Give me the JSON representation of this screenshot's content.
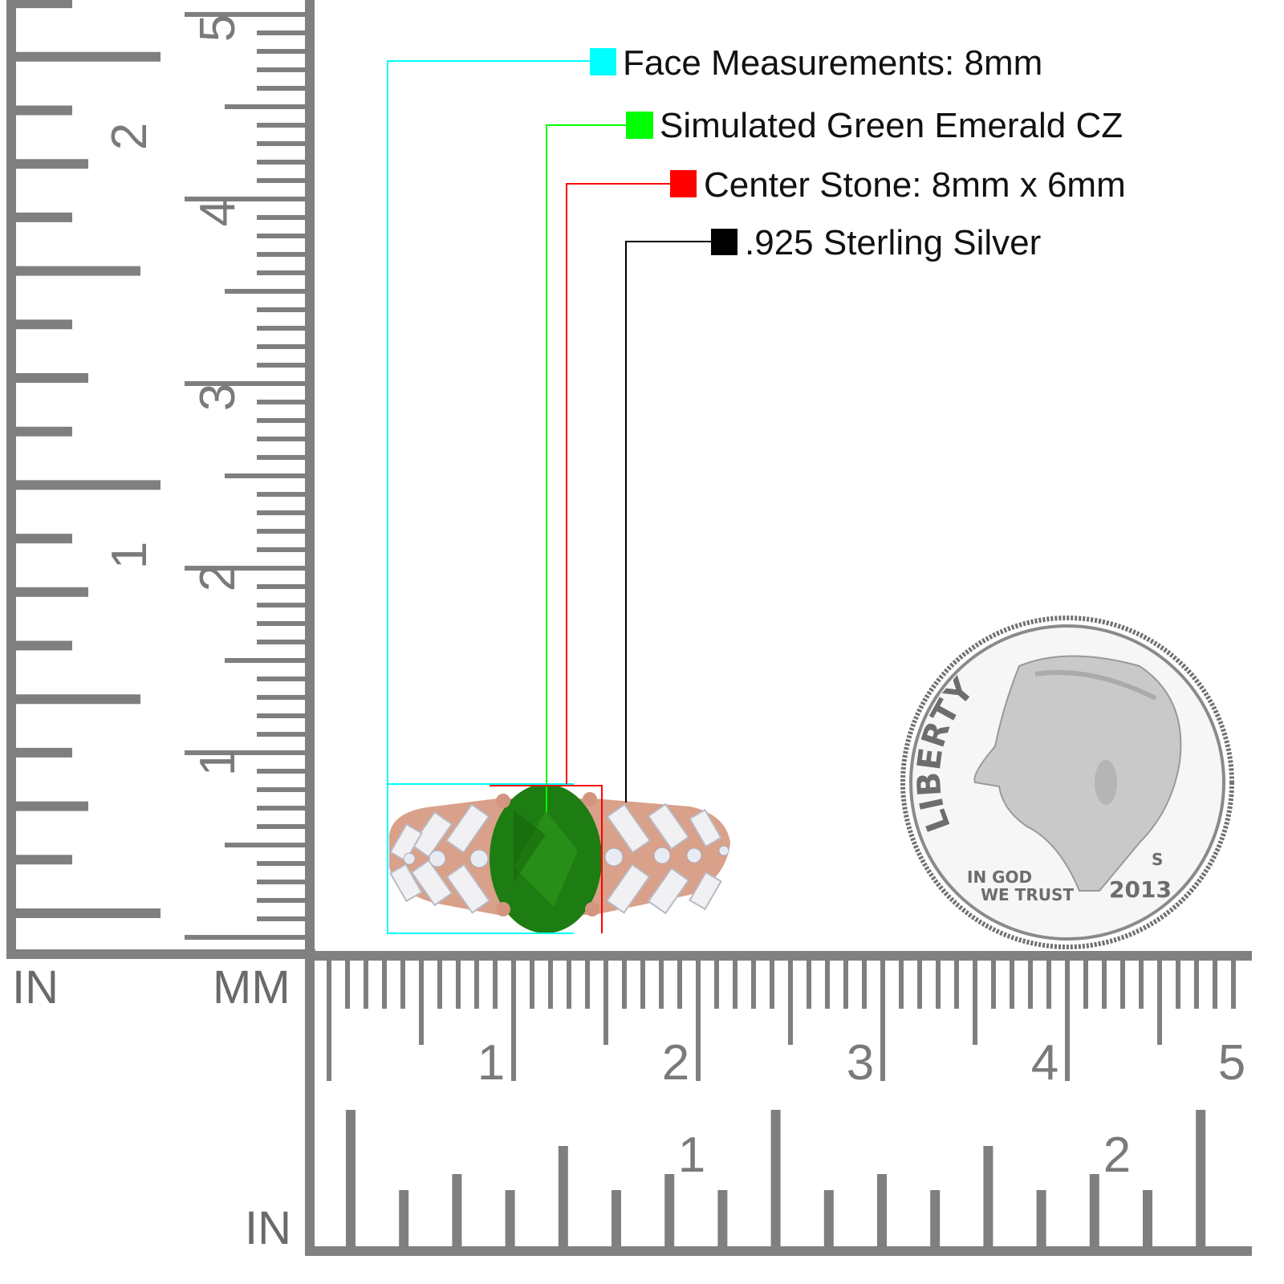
{
  "callouts": [
    {
      "label": "Face Measurements: 8mm",
      "color": "#00ffff"
    },
    {
      "label": "Simulated Green Emerald CZ",
      "color": "#00ff00"
    },
    {
      "label": "Center Stone: 8mm x 6mm",
      "color": "#ff0000"
    },
    {
      "label": ".925 Sterling Silver",
      "color": "#000000"
    }
  ],
  "ruler": {
    "color": "#7f7f7f",
    "left_inch_labels": [
      "1",
      "2"
    ],
    "left_mm_labels": [
      "1",
      "2",
      "3",
      "4",
      "5"
    ],
    "bottom_mm_labels": [
      "1",
      "2",
      "3",
      "4",
      "5"
    ],
    "bottom_inch_labels": [
      "1",
      "2"
    ],
    "unit_in_left": "IN",
    "unit_mm": "MM",
    "unit_in_bottom": "IN"
  },
  "ring": {
    "stone_color": "#1e7d12",
    "metal_color": "#d9a08a"
  },
  "coin": {
    "liberty": "LIBERTY",
    "motto_1": "IN GOD",
    "motto_2": "WE TRUST",
    "year": "2013",
    "mint_mark": "S"
  }
}
